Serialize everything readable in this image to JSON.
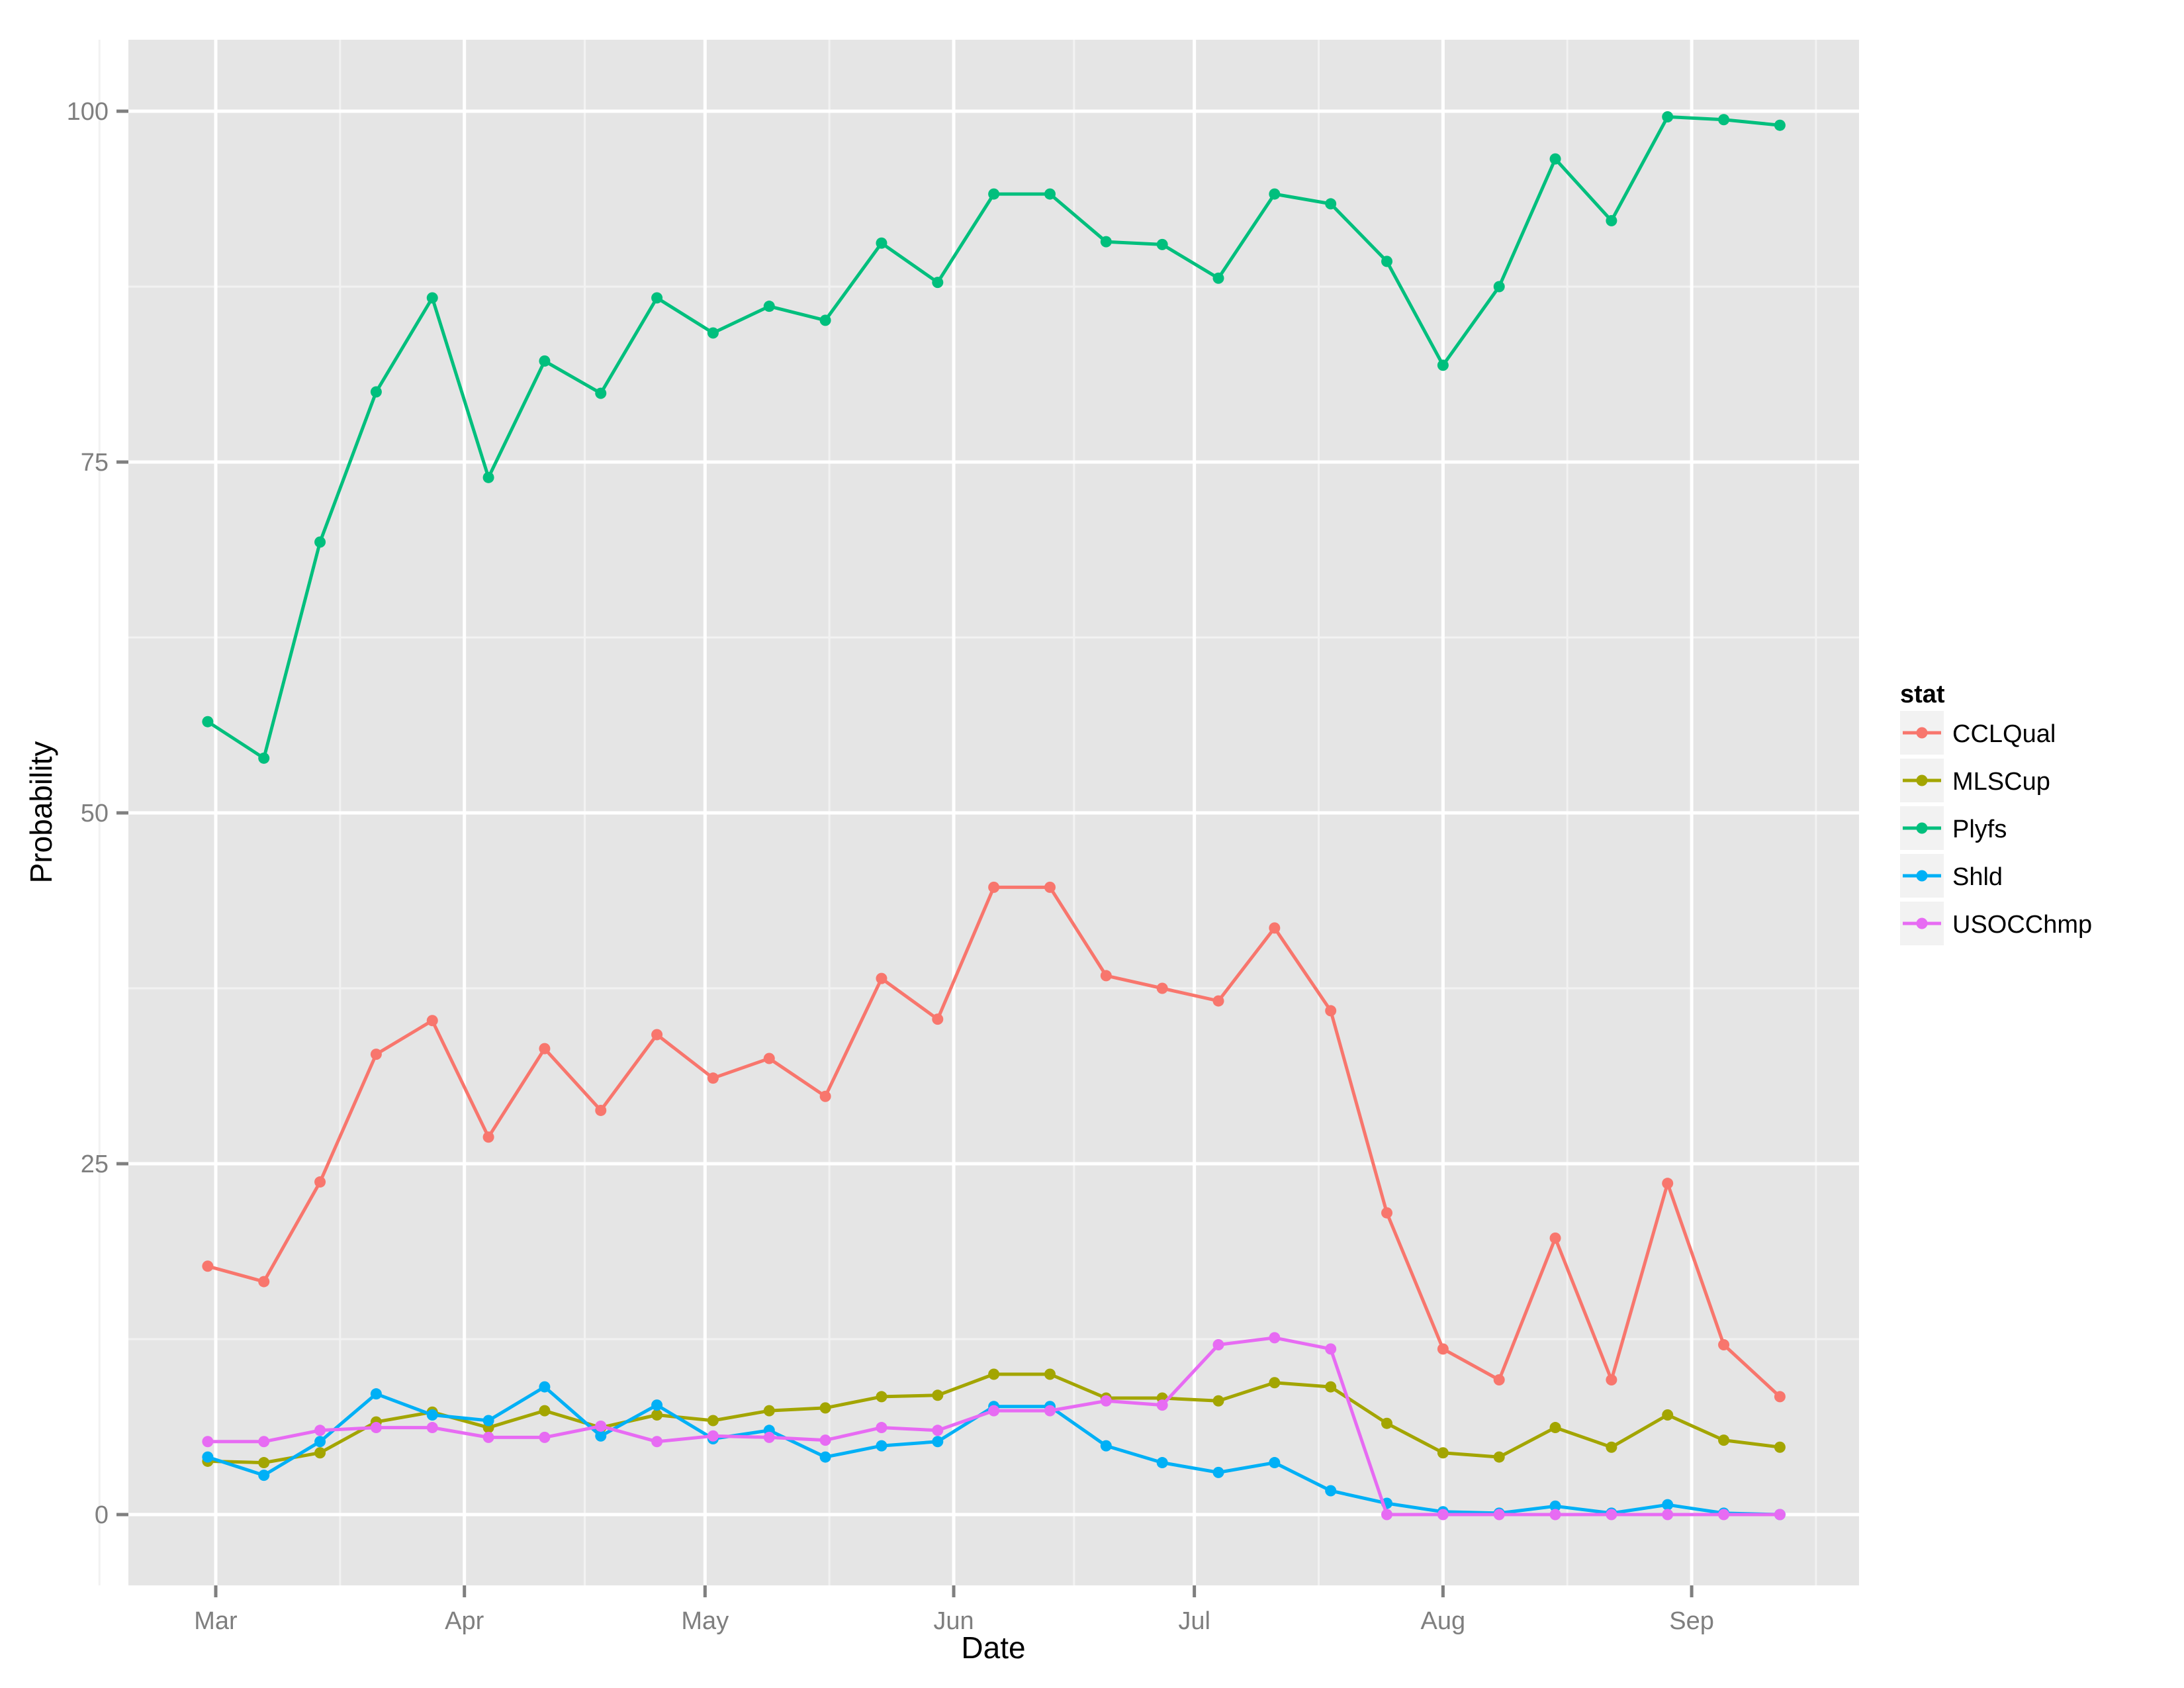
{
  "chart_data": {
    "type": "line",
    "title": "",
    "xlabel": "Date",
    "ylabel": "Probability",
    "ylim": [
      -5,
      105
    ],
    "yticks": [
      0,
      25,
      50,
      75,
      100
    ],
    "xticks": [
      "Mar",
      "Apr",
      "May",
      "Jun",
      "Jul",
      "Aug",
      "Sep"
    ],
    "grid": true,
    "legend": {
      "title": "stat",
      "position": "right"
    },
    "x": [
      "Feb 28",
      "Mar 7",
      "Mar 14",
      "Mar 21",
      "Mar 28",
      "Apr 4",
      "Apr 11",
      "Apr 18",
      "Apr 25",
      "May 2",
      "May 9",
      "May 16",
      "May 23",
      "May 30",
      "Jun 6",
      "Jun 13",
      "Jun 20",
      "Jun 27",
      "Jul 4",
      "Jul 11",
      "Jul 18",
      "Jul 25",
      "Aug 1",
      "Aug 8",
      "Aug 15",
      "Aug 22",
      "Aug 29",
      "Sep 5",
      "Sep 12"
    ],
    "series": [
      {
        "name": "CCLQual",
        "color": "#F8766D",
        "values": [
          17.7,
          16.6,
          23.7,
          32.8,
          35.2,
          26.9,
          33.2,
          28.8,
          34.2,
          31.1,
          32.5,
          29.8,
          38.2,
          35.3,
          44.7,
          44.7,
          38.4,
          37.5,
          36.6,
          41.8,
          35.9,
          21.5,
          11.8,
          9.6,
          19.7,
          9.6,
          23.6,
          12.1,
          8.4
        ]
      },
      {
        "name": "MLSCup",
        "color": "#A3A500",
        "values": [
          3.8,
          3.7,
          4.4,
          6.6,
          7.3,
          6.2,
          7.4,
          6.2,
          7.1,
          6.7,
          7.4,
          7.6,
          8.4,
          8.5,
          10.0,
          10.0,
          8.3,
          8.3,
          8.1,
          9.4,
          9.1,
          6.5,
          4.4,
          4.1,
          6.2,
          4.8,
          7.1,
          5.3,
          4.8
        ]
      },
      {
        "name": "Plyfs",
        "color": "#00BF7D",
        "values": [
          56.5,
          53.9,
          69.3,
          80.0,
          86.7,
          73.9,
          82.2,
          79.9,
          86.7,
          84.2,
          86.1,
          85.1,
          90.6,
          87.8,
          94.1,
          94.1,
          90.7,
          90.5,
          88.1,
          94.1,
          93.4,
          89.3,
          81.9,
          87.5,
          96.6,
          92.2,
          99.6,
          99.4,
          99.0
        ]
      },
      {
        "name": "Shld",
        "color": "#00B0F6",
        "values": [
          4.1,
          2.8,
          5.2,
          8.6,
          7.1,
          6.7,
          9.1,
          5.6,
          7.8,
          5.4,
          6.0,
          4.1,
          4.9,
          5.2,
          7.7,
          7.7,
          4.9,
          3.7,
          3.0,
          3.7,
          1.7,
          0.8,
          0.2,
          0.1,
          0.6,
          0.1,
          0.7,
          0.1,
          0.0
        ]
      },
      {
        "name": "USOCChmp",
        "color": "#E76BF3",
        "values": [
          5.2,
          5.2,
          6.0,
          6.2,
          6.2,
          5.5,
          5.5,
          6.3,
          5.2,
          5.6,
          5.5,
          5.3,
          6.2,
          6.0,
          7.4,
          7.4,
          8.1,
          7.8,
          12.1,
          12.6,
          11.8,
          0.0,
          0.0,
          0.0,
          0.0,
          0.0,
          0.0,
          0.0,
          0.0
        ]
      }
    ]
  },
  "axes": {
    "x_title": "Date",
    "y_title": "Probability",
    "x_tick_labels": [
      "Mar",
      "Apr",
      "May",
      "Jun",
      "Jul",
      "Aug",
      "Sep"
    ],
    "y_tick_labels": [
      "0",
      "25",
      "50",
      "75",
      "100"
    ]
  },
  "legend": {
    "title": "stat",
    "items": [
      "CCLQual",
      "MLSCup",
      "Plyfs",
      "Shld",
      "USOCChmp"
    ]
  },
  "colors": {
    "panel_background": "#E5E5E5",
    "grid_major": "#FFFFFF",
    "grid_minor": "#F2F2F2",
    "legend_key_background": "#F2F2F2"
  }
}
